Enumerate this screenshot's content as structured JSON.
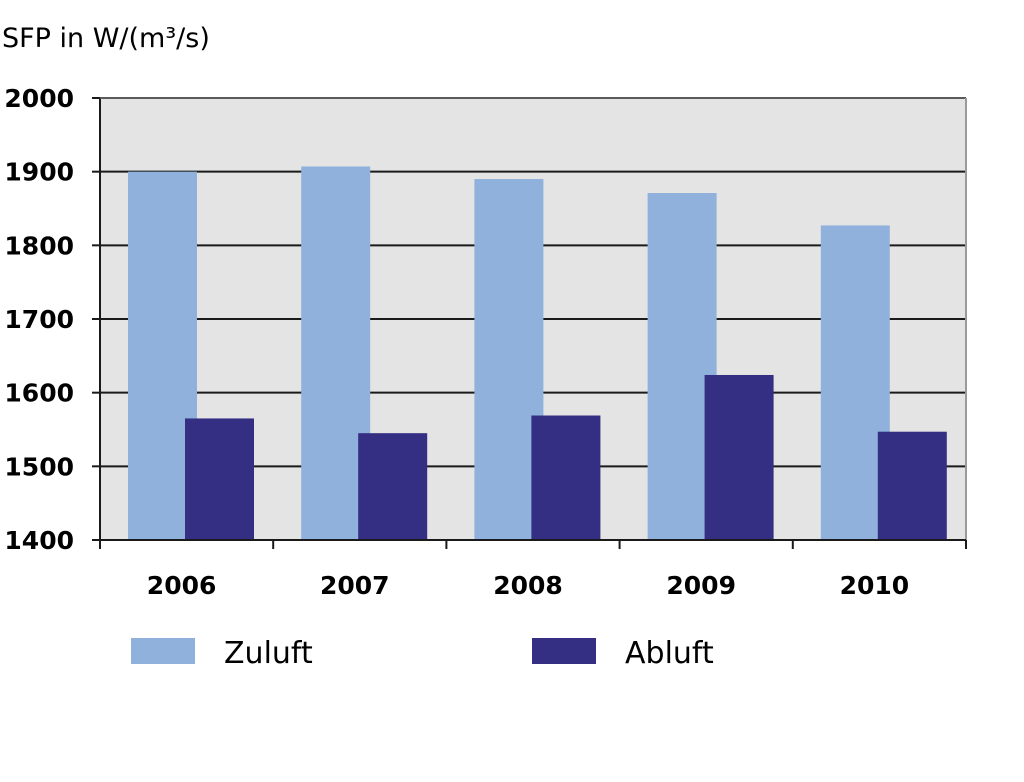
{
  "chart_data": {
    "type": "bar",
    "title": "",
    "ylabel": "SFP in W/(m³/s)",
    "xlabel": "",
    "categories": [
      "2006",
      "2007",
      "2008",
      "2009",
      "2010"
    ],
    "ylim": [
      1400,
      2000
    ],
    "yticks": [
      1400,
      1500,
      1600,
      1700,
      1800,
      1900,
      2000
    ],
    "grid": true,
    "legend_position": "bottom",
    "series": [
      {
        "name": "Zuluft",
        "color": "#8fb1dc",
        "values": [
          1900,
          1907,
          1890,
          1871,
          1827
        ]
      },
      {
        "name": "Abluft",
        "color": "#342f82",
        "values": [
          1565,
          1545,
          1569,
          1624,
          1547
        ]
      }
    ],
    "plot_background": "#e4e4e4"
  }
}
